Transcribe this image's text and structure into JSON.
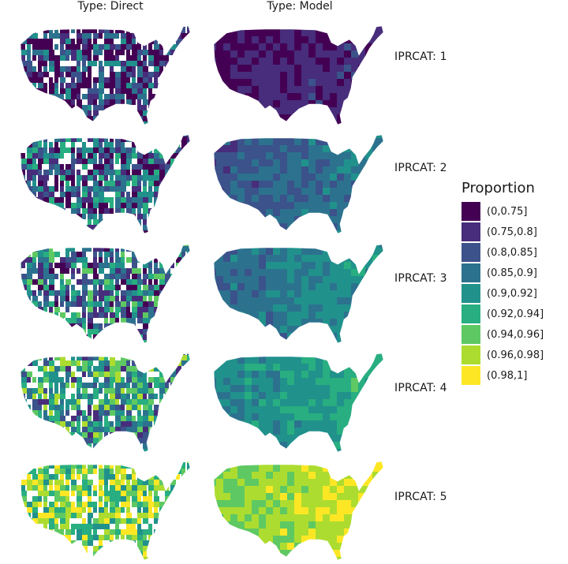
{
  "columns": [
    "Type: Direct",
    "Type: Model"
  ],
  "rows": [
    "IPRCAT: 1",
    "IPRCAT: 2",
    "IPRCAT: 3",
    "IPRCAT: 4",
    "IPRCAT: 5"
  ],
  "legend": {
    "title": "Proportion",
    "items": [
      {
        "label": "(0,0.75]",
        "color": "#440154"
      },
      {
        "label": "(0.75,0.8]",
        "color": "#472d7b"
      },
      {
        "label": "(0.8,0.85]",
        "color": "#3b528b"
      },
      {
        "label": "(0.85,0.9]",
        "color": "#2c728e"
      },
      {
        "label": "(0.9,0.92]",
        "color": "#21918c"
      },
      {
        "label": "(0.92,0.94]",
        "color": "#28ae80"
      },
      {
        "label": "(0.94,0.96]",
        "color": "#5ec962"
      },
      {
        "label": "(0.96,0.98]",
        "color": "#addc30"
      },
      {
        "label": "(0.98,1]",
        "color": "#fde725"
      }
    ]
  }
}
